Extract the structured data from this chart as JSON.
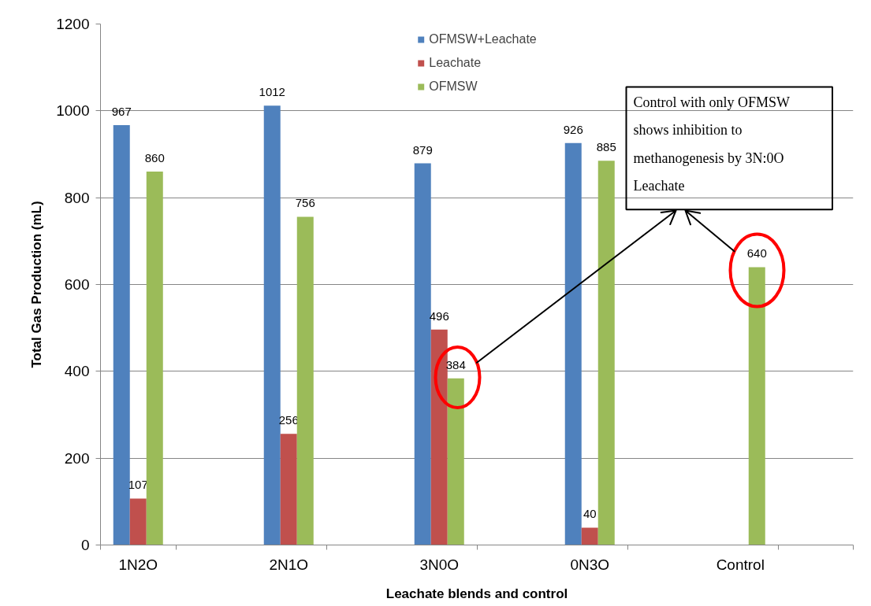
{
  "chart_data": {
    "type": "bar",
    "xlabel": "Leachate blends and control",
    "ylabel": "Total Gas Production (mL)",
    "categories": [
      "1N2O",
      "2N1O",
      "3N0O",
      "0N3O",
      "Control"
    ],
    "series": [
      {
        "name": "OFMSW+Leachate",
        "color": "#4f81bd",
        "values": [
          967,
          1012,
          879,
          926,
          null
        ]
      },
      {
        "name": "Leachate",
        "color": "#c0504d",
        "values": [
          107,
          256,
          496,
          40,
          null
        ]
      },
      {
        "name": "OFMSW",
        "color": "#9bbb59",
        "values": [
          860,
          756,
          384,
          885,
          640
        ]
      }
    ],
    "ylim": [
      0,
      1200
    ],
    "yticks": [
      0,
      200,
      400,
      600,
      800,
      1000,
      1200
    ],
    "grid": "y",
    "legend": "top",
    "data_labels": true,
    "annotations": [
      "Control with only OFMSW\nshows inhibition to\nmethanogenesis by 3N:0O\nLeachate"
    ]
  }
}
